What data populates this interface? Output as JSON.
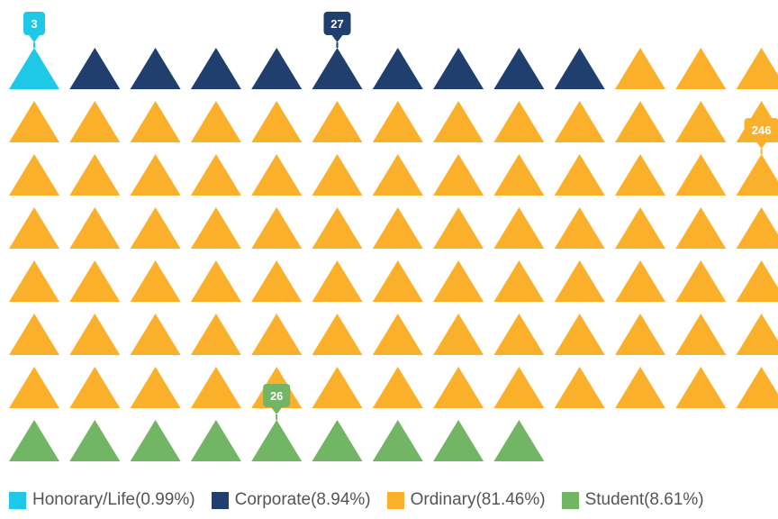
{
  "chart_data": {
    "type": "waffle",
    "title": "",
    "columns": 13,
    "categories": [
      "Honorary/Life",
      "Corporate",
      "Ordinary",
      "Student"
    ],
    "series": [
      {
        "name": "Honorary/Life",
        "value": 3,
        "percent_label": "(0.99%)",
        "color": "#1ec8e6",
        "callout": "3"
      },
      {
        "name": "Corporate",
        "value": 27,
        "percent_label": "(8.94%)",
        "color": "#213f6e",
        "callout": "27"
      },
      {
        "name": "Ordinary",
        "value": 246,
        "percent_label": "(81.46%)",
        "color": "#fbb02b",
        "callout": "246"
      },
      {
        "name": "Student",
        "value": 26,
        "percent_label": "(8.61%)",
        "color": "#72b565",
        "callout": "26"
      }
    ],
    "shown_icon_counts": [
      1,
      9,
      81,
      9
    ],
    "legend_position": "bottom"
  }
}
